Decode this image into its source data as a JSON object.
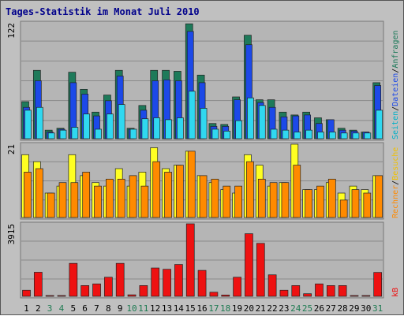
{
  "title": "Tages-Statistik im Monat Juli 2010",
  "colors": {
    "title": "#00008b",
    "background": "#c0c0c0",
    "plot_background": "#b5b5b5",
    "weekday_label": "#000000",
    "weekend_label": "#1d7a51",
    "anfragen": "#1e7a5a",
    "dateien": "#1c49e8",
    "seiten": "#30d8f0",
    "besuche": "#ffff22",
    "rechner": "#ff8a00",
    "kb": "#ee1111",
    "legend_rechner": "#ff8a00",
    "legend_besuche": "#f0c000",
    "legend_seiten": "#00b0c8",
    "legend_dateien": "#1c49e8",
    "legend_anfragen": "#1e7a5a",
    "legend_kb": "#ee1111"
  },
  "axis_max_labels": [
    "122",
    "21",
    "3915"
  ],
  "legend": {
    "top": [
      "Anfragen",
      "Dateien",
      "Seiten"
    ],
    "middle": [
      "Besuche",
      "Rechner"
    ],
    "bottom": [
      "kB"
    ],
    "separator": "/"
  },
  "chart_data": [
    {
      "type": "bar",
      "title": "",
      "ylim": [
        0,
        122
      ],
      "ymax_label": "122",
      "categories": [
        "1",
        "2",
        "3",
        "4",
        "5",
        "6",
        "7",
        "8",
        "9",
        "10",
        "11",
        "12",
        "13",
        "14",
        "15",
        "16",
        "17",
        "18",
        "19",
        "20",
        "21",
        "22",
        "23",
        "24",
        "25",
        "26",
        "27",
        "28",
        "29",
        "30",
        "31"
      ],
      "weekend": [
        "3",
        "4",
        "10",
        "11",
        "17",
        "18",
        "24",
        "25",
        "31"
      ],
      "series": [
        {
          "name": "Anfragen",
          "values": [
            39,
            72,
            9,
            11,
            70,
            52,
            28,
            46,
            72,
            11,
            35,
            72,
            72,
            71,
            121,
            67,
            16,
            15,
            44,
            109,
            41,
            41,
            28,
            25,
            28,
            22,
            20,
            11,
            9,
            7,
            59
          ]
        },
        {
          "name": "Dateien",
          "values": [
            33,
            61,
            7,
            10,
            59,
            47,
            24,
            40,
            66,
            10,
            30,
            61,
            62,
            61,
            113,
            59,
            13,
            13,
            41,
            99,
            38,
            33,
            23,
            24,
            25,
            16,
            20,
            9,
            8,
            7,
            56
          ]
        },
        {
          "name": "Seiten",
          "values": [
            30,
            33,
            6,
            9,
            12,
            26,
            10,
            26,
            36,
            10,
            21,
            22,
            20,
            22,
            50,
            32,
            10,
            8,
            19,
            43,
            35,
            10,
            9,
            7,
            9,
            7,
            7,
            6,
            6,
            6,
            30
          ]
        }
      ]
    },
    {
      "type": "bar",
      "title": "",
      "ylim": [
        0,
        21
      ],
      "ymax_label": "21",
      "categories": [
        "1",
        "2",
        "3",
        "4",
        "5",
        "6",
        "7",
        "8",
        "9",
        "10",
        "11",
        "12",
        "13",
        "14",
        "15",
        "16",
        "17",
        "18",
        "19",
        "20",
        "21",
        "22",
        "23",
        "24",
        "25",
        "26",
        "27",
        "28",
        "29",
        "30",
        "31"
      ],
      "series": [
        {
          "name": "Besuche",
          "values": [
            18,
            16,
            7,
            9,
            18,
            12,
            10,
            9,
            14,
            9,
            13,
            20,
            14,
            15,
            19,
            12,
            10,
            8,
            7,
            18,
            15,
            9,
            10,
            21,
            8,
            8,
            10,
            7,
            9,
            8,
            12
          ]
        },
        {
          "name": "Rechner",
          "values": [
            13,
            14,
            7,
            10,
            10,
            13,
            9,
            11,
            11,
            12,
            9,
            16,
            13,
            15,
            19,
            12,
            11,
            9,
            9,
            16,
            11,
            10,
            10,
            15,
            8,
            9,
            11,
            5,
            8,
            7,
            12
          ]
        }
      ]
    },
    {
      "type": "bar",
      "title": "",
      "ylim": [
        0,
        3915
      ],
      "ymax_label": "3915",
      "categories": [
        "1",
        "2",
        "3",
        "4",
        "5",
        "6",
        "7",
        "8",
        "9",
        "10",
        "11",
        "12",
        "13",
        "14",
        "15",
        "16",
        "17",
        "18",
        "19",
        "20",
        "21",
        "22",
        "23",
        "24",
        "25",
        "26",
        "27",
        "28",
        "29",
        "30",
        "31"
      ],
      "series": [
        {
          "name": "kB",
          "values": [
            330,
            1300,
            15,
            15,
            1780,
            580,
            670,
            1030,
            1780,
            80,
            580,
            1530,
            1460,
            1720,
            3915,
            1400,
            220,
            70,
            1030,
            3380,
            2860,
            1160,
            330,
            580,
            140,
            670,
            580,
            580,
            15,
            15,
            1290
          ]
        }
      ]
    }
  ]
}
